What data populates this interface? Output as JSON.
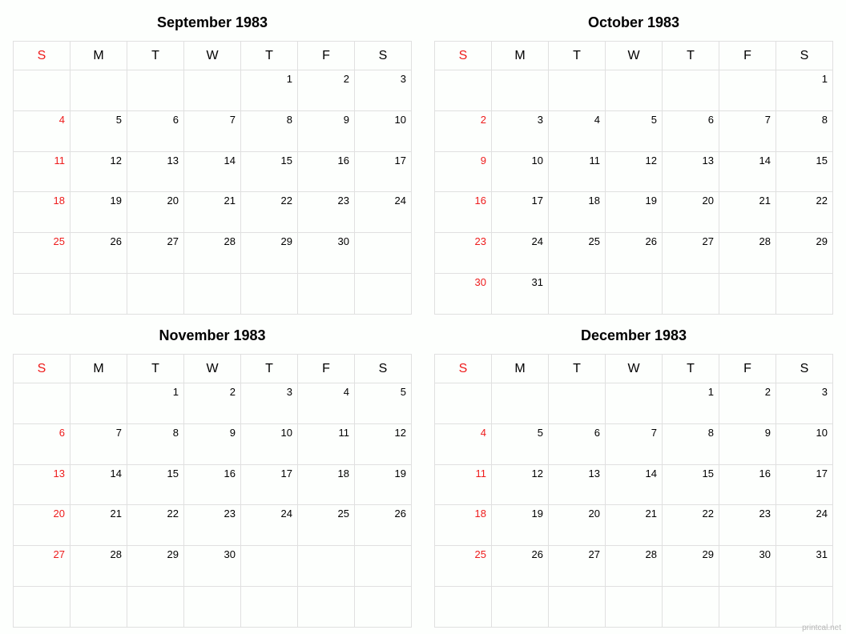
{
  "day_headers": [
    "S",
    "M",
    "T",
    "W",
    "T",
    "F",
    "S"
  ],
  "sunday_color": "#ee1b1b",
  "text_color": "#000000",
  "border_color": "#e0e0e0",
  "background_color": "#fdfffd",
  "title_fontsize": 18,
  "header_fontsize": 16,
  "cell_fontsize": 13,
  "watermark": "printcal.net",
  "months": [
    {
      "title": "September 1983",
      "weeks": [
        [
          "",
          "",
          "",
          "",
          "1",
          "2",
          "3"
        ],
        [
          "4",
          "5",
          "6",
          "7",
          "8",
          "9",
          "10"
        ],
        [
          "11",
          "12",
          "13",
          "14",
          "15",
          "16",
          "17"
        ],
        [
          "18",
          "19",
          "20",
          "21",
          "22",
          "23",
          "24"
        ],
        [
          "25",
          "26",
          "27",
          "28",
          "29",
          "30",
          ""
        ],
        [
          "",
          "",
          "",
          "",
          "",
          "",
          ""
        ]
      ]
    },
    {
      "title": "October 1983",
      "weeks": [
        [
          "",
          "",
          "",
          "",
          "",
          "",
          "1"
        ],
        [
          "2",
          "3",
          "4",
          "5",
          "6",
          "7",
          "8"
        ],
        [
          "9",
          "10",
          "11",
          "12",
          "13",
          "14",
          "15"
        ],
        [
          "16",
          "17",
          "18",
          "19",
          "20",
          "21",
          "22"
        ],
        [
          "23",
          "24",
          "25",
          "26",
          "27",
          "28",
          "29"
        ],
        [
          "30",
          "31",
          "",
          "",
          "",
          "",
          ""
        ]
      ]
    },
    {
      "title": "November 1983",
      "weeks": [
        [
          "",
          "",
          "1",
          "2",
          "3",
          "4",
          "5"
        ],
        [
          "6",
          "7",
          "8",
          "9",
          "10",
          "11",
          "12"
        ],
        [
          "13",
          "14",
          "15",
          "16",
          "17",
          "18",
          "19"
        ],
        [
          "20",
          "21",
          "22",
          "23",
          "24",
          "25",
          "26"
        ],
        [
          "27",
          "28",
          "29",
          "30",
          "",
          "",
          ""
        ],
        [
          "",
          "",
          "",
          "",
          "",
          "",
          ""
        ]
      ]
    },
    {
      "title": "December 1983",
      "weeks": [
        [
          "",
          "",
          "",
          "",
          "1",
          "2",
          "3"
        ],
        [
          "4",
          "5",
          "6",
          "7",
          "8",
          "9",
          "10"
        ],
        [
          "11",
          "12",
          "13",
          "14",
          "15",
          "16",
          "17"
        ],
        [
          "18",
          "19",
          "20",
          "21",
          "22",
          "23",
          "24"
        ],
        [
          "25",
          "26",
          "27",
          "28",
          "29",
          "30",
          "31"
        ],
        [
          "",
          "",
          "",
          "",
          "",
          "",
          ""
        ]
      ]
    }
  ]
}
